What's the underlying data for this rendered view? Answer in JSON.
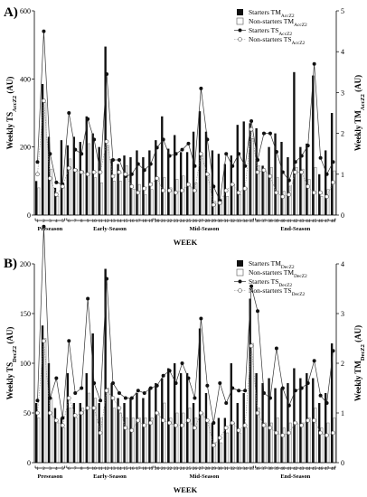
{
  "chart_data": [
    {
      "panel_label": "A)",
      "type": "bar",
      "title": "",
      "xlabel": "WEEK",
      "ylabel_left": "Weekly TSAccZ2 (AU)",
      "ylabel_right": "Weekly TMAccZ2 (AU)",
      "ylabel_left_text": {
        "main": "Weekly TS",
        "sub": "AccZ2",
        "unit": " (AU)"
      },
      "ylabel_right_text": {
        "main": "Weekly TM",
        "sub": "AccZ2",
        "unit": " (AU)"
      },
      "ylim_left": [
        0,
        600
      ],
      "yticks_left": [
        0,
        200,
        400,
        600
      ],
      "ylim_right": [
        0,
        5
      ],
      "yticks_right": [
        0,
        1,
        2,
        3,
        4,
        5
      ],
      "categories": [
        "1",
        "2",
        "3",
        "4",
        "5",
        "6",
        "7",
        "8",
        "9",
        "10",
        "11",
        "12",
        "13",
        "14",
        "15",
        "16",
        "17",
        "18",
        "19",
        "20",
        "21",
        "22",
        "23",
        "24",
        "25",
        "26",
        "27",
        "28",
        "29",
        "30",
        "31",
        "32",
        "33",
        "34",
        "35",
        "36",
        "37",
        "38",
        "39",
        "40",
        "41",
        "42",
        "43",
        "44",
        "45",
        "46",
        "47",
        "48"
      ],
      "legend": [
        {
          "main": "Starters TM",
          "sub": "AccZ2",
          "kind": "bar-black"
        },
        {
          "main": "Non-starters TM",
          "sub": "AccZ2",
          "kind": "bar-white"
        },
        {
          "main": "Starters TS",
          "sub": "AccZ2",
          "kind": "line-filled"
        },
        {
          "main": "Non-starters TS",
          "sub": "AccZ2",
          "kind": "line-open"
        }
      ],
      "series": [
        {
          "name": "Starters TMAccZ2",
          "axis": "left",
          "kind": "bar-black",
          "values": [
            100,
            385,
            230,
            80,
            220,
            205,
            230,
            215,
            290,
            240,
            200,
            495,
            165,
            150,
            175,
            170,
            190,
            170,
            190,
            220,
            290,
            195,
            235,
            185,
            185,
            245,
            305,
            245,
            190,
            180,
            150,
            175,
            265,
            275,
            270,
            255,
            145,
            200,
            240,
            215,
            170,
            420,
            200,
            210,
            410,
            120,
            190,
            300
          ]
        },
        {
          "name": "Non-starters TMAccZ2",
          "axis": "left",
          "kind": "bar-white",
          "values": [
            80,
            330,
            135,
            55,
            80,
            165,
            135,
            130,
            210,
            110,
            95,
            205,
            100,
            100,
            145,
            75,
            90,
            60,
            75,
            110,
            110,
            80,
            105,
            115,
            85,
            95,
            175,
            120,
            40,
            45,
            55,
            90,
            60,
            80,
            225,
            145,
            130,
            140,
            110,
            70,
            85,
            140,
            135,
            105,
            140,
            55,
            75,
            130
          ]
        },
        {
          "name": "Starters TSAccZ2",
          "axis": "right",
          "kind": "line-filled",
          "values": [
            1.3,
            4.5,
            1.5,
            0.8,
            0.75,
            2.5,
            1.6,
            1.5,
            2.35,
            1.85,
            1.05,
            3.45,
            1.35,
            1.35,
            0.95,
            1.0,
            1.25,
            1.1,
            1.25,
            1.65,
            1.85,
            1.45,
            1.5,
            1.6,
            1.75,
            1.2,
            3.1,
            1.85,
            0.7,
            0.35,
            1.5,
            1.2,
            1.5,
            1.2,
            2.3,
            1.35,
            2.0,
            2.0,
            1.55,
            1.05,
            0.85,
            1.3,
            1.45,
            1.7,
            3.7,
            1.4,
            1.0,
            1.3
          ]
        },
        {
          "name": "Non-starters TSAccZ2",
          "axis": "right",
          "kind": "line-open",
          "values": [
            1.0,
            2.8,
            0.9,
            0.5,
            0.7,
            1.15,
            1.1,
            1.05,
            1.0,
            1.05,
            1.05,
            1.8,
            0.95,
            1.05,
            1.0,
            0.7,
            0.55,
            0.65,
            0.75,
            0.9,
            0.6,
            0.6,
            0.55,
            0.6,
            0.75,
            0.6,
            1.5,
            1.0,
            0.25,
            0.3,
            0.6,
            0.75,
            0.55,
            0.65,
            2.1,
            1.05,
            1.1,
            0.95,
            0.55,
            0.45,
            0.5,
            1.05,
            1.05,
            0.7,
            0.55,
            0.55,
            0.45,
            0.8
          ]
        }
      ],
      "phases": [
        {
          "label": "Preseason",
          "start_week": 1,
          "end_week": 5
        },
        {
          "label": "Early-Season",
          "start_week": 6,
          "end_week": 19
        },
        {
          "label": "Mid-Season",
          "start_week": 20,
          "end_week": 35
        },
        {
          "label": "End-Season",
          "start_week": 36,
          "end_week": 48
        }
      ]
    },
    {
      "panel_label": "B)",
      "type": "bar",
      "title": "",
      "xlabel": "WEEK",
      "ylabel_left": "Weekly TSDecZ2 (AU)",
      "ylabel_right": "Weekly TMDecZ2 (AU)",
      "ylabel_left_text": {
        "main": "Weekly TS",
        "sub": "DecZ2",
        "unit": " (AU)"
      },
      "ylabel_right_text": {
        "main": "Weekly TM",
        "sub": "DecZ2",
        "unit": " (AU)"
      },
      "ylim_left": [
        0,
        200
      ],
      "yticks_left": [
        0,
        50,
        100,
        150,
        200
      ],
      "ylim_right": [
        0,
        4
      ],
      "yticks_right": [
        0,
        1,
        2,
        3,
        4
      ],
      "categories": [
        "1",
        "2",
        "3",
        "4",
        "5",
        "6",
        "7",
        "8",
        "9",
        "10",
        "11",
        "12",
        "13",
        "14",
        "15",
        "16",
        "17",
        "18",
        "19",
        "20",
        "21",
        "22",
        "23",
        "24",
        "25",
        "26",
        "27",
        "28",
        "29",
        "30",
        "31",
        "32",
        "33",
        "34",
        "35",
        "36",
        "37",
        "38",
        "39",
        "40",
        "41",
        "42",
        "43",
        "44",
        "45",
        "46",
        "47",
        "48"
      ],
      "legend": [
        {
          "main": "Starters TM",
          "sub": "DecZ2",
          "kind": "bar-black"
        },
        {
          "main": "Non-starters TM",
          "sub": "DecZ2",
          "kind": "bar-white"
        },
        {
          "main": "Starters TS",
          "sub": "DecZ2",
          "kind": "line-filled"
        },
        {
          "main": "Non-starters TS",
          "sub": "DecZ2",
          "kind": "line-open"
        }
      ],
      "series": [
        {
          "name": "Starters TMDecZ2",
          "axis": "left",
          "kind": "bar-black",
          "values": [
            60,
            138,
            100,
            55,
            45,
            90,
            60,
            60,
            90,
            130,
            60,
            195,
            80,
            65,
            60,
            65,
            70,
            65,
            75,
            80,
            85,
            95,
            100,
            90,
            90,
            60,
            135,
            70,
            40,
            45,
            45,
            100,
            60,
            70,
            165,
            90,
            80,
            85,
            75,
            75,
            80,
            95,
            85,
            90,
            85,
            60,
            70,
            120
          ]
        },
        {
          "name": "Non-starters TMDecZ2",
          "axis": "left",
          "kind": "bar-white",
          "values": [
            45,
            125,
            65,
            40,
            35,
            55,
            45,
            55,
            70,
            65,
            45,
            75,
            55,
            50,
            45,
            45,
            45,
            45,
            45,
            50,
            60,
            45,
            50,
            50,
            55,
            45,
            50,
            40,
            20,
            20,
            30,
            40,
            30,
            35,
            120,
            55,
            40,
            40,
            45,
            35,
            40,
            40,
            40,
            45,
            55,
            35,
            40,
            45
          ]
        },
        {
          "name": "Starters TSDecZ2",
          "axis": "right",
          "kind": "line-filled",
          "values": [
            1.25,
            4.75,
            1.3,
            1.7,
            0.9,
            2.45,
            1.4,
            1.5,
            3.3,
            1.6,
            1.25,
            3.7,
            1.6,
            1.4,
            1.3,
            1.3,
            1.45,
            1.4,
            1.5,
            1.55,
            1.75,
            1.85,
            1.6,
            2.0,
            1.7,
            1.3,
            2.9,
            1.55,
            0.8,
            1.6,
            1.2,
            1.5,
            1.45,
            1.45,
            3.55,
            3.05,
            1.4,
            1.3,
            2.3,
            1.5,
            1.15,
            1.45,
            1.5,
            1.6,
            2.05,
            1.35,
            1.2,
            2.25
          ]
        },
        {
          "name": "Non-starters TSDecZ2",
          "axis": "right",
          "kind": "line-open",
          "values": [
            1.0,
            2.45,
            1.0,
            0.85,
            0.75,
            1.3,
            0.95,
            1.0,
            1.1,
            1.1,
            0.6,
            1.45,
            1.3,
            1.1,
            0.7,
            0.65,
            0.85,
            0.75,
            0.8,
            1.0,
            0.85,
            0.8,
            0.75,
            0.75,
            0.85,
            0.7,
            1.0,
            0.85,
            0.35,
            0.5,
            0.7,
            0.8,
            0.65,
            0.75,
            2.35,
            1.0,
            0.75,
            0.7,
            0.6,
            0.55,
            0.6,
            0.8,
            0.75,
            0.85,
            0.85,
            0.6,
            0.55,
            0.6
          ]
        }
      ],
      "phases": [
        {
          "label": "Preseason",
          "start_week": 1,
          "end_week": 5
        },
        {
          "label": "Early-Season",
          "start_week": 6,
          "end_week": 19
        },
        {
          "label": "Mid-Season",
          "start_week": 20,
          "end_week": 35
        },
        {
          "label": "End-Season",
          "start_week": 36,
          "end_week": 48
        }
      ]
    }
  ]
}
